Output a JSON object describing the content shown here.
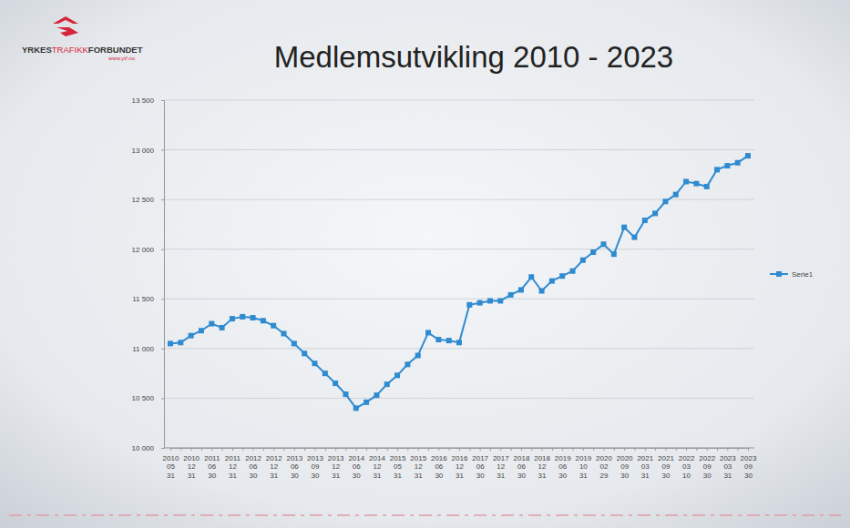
{
  "chart_data": {
    "type": "line",
    "title": "Medlemsutvikling 2010 - 2023",
    "annotations": [
      "YRKES",
      "TRAFIKK",
      "FORBUNDET",
      "www.ytf.no"
    ],
    "categories": [
      "2010\n05\n31",
      null,
      "2010\n12\n31",
      null,
      "2011\n06\n30",
      null,
      "2011\n12\n31",
      null,
      "2012\n06\n30",
      null,
      "2012\n12\n31",
      null,
      "2013\n06\n30",
      null,
      "2013\n09\n30",
      null,
      "2013\n12\n31",
      null,
      "2014\n06\n30",
      null,
      "2014\n12\n31",
      null,
      "2015\n05\n31",
      null,
      "2015\n12\n31",
      null,
      "2016\n06\n30",
      null,
      "2016\n12\n31",
      null,
      "2017\n06\n30",
      null,
      "2017\n12\n31",
      null,
      "2018\n06\n30",
      null,
      "2018\n12\n31",
      null,
      "2019\n06\n30",
      null,
      "2019\n10\n31",
      null,
      "2020\n02\n29",
      null,
      "2020\n09\n30",
      null,
      "2021\n03\n31",
      null,
      "2021\n09\n30",
      null,
      "2022\n03\n10",
      null,
      "2022\n09\n30",
      null,
      "2023\n03\n31",
      null,
      "2023\n09\n30"
    ],
    "series": [
      {
        "name": "Serie1",
        "color": "#2f8bd0",
        "marker": "square",
        "line_style": "solid",
        "values": [
          11050,
          11060,
          11130,
          11180,
          11250,
          11210,
          11300,
          11320,
          11310,
          11280,
          11230,
          11150,
          11050,
          10950,
          10850,
          10750,
          10650,
          10540,
          10400,
          10460,
          10530,
          10640,
          10730,
          10840,
          10930,
          11160,
          11090,
          11080,
          11060,
          11440,
          11460,
          11480,
          11480,
          11540,
          11590,
          11720,
          11580,
          11680,
          11730,
          11780,
          11890,
          11970,
          12050,
          11950,
          12220,
          12120,
          12290,
          12360,
          12480,
          12550,
          12680,
          12660,
          12630,
          12800,
          12840,
          12870,
          12940
        ]
      }
    ],
    "ylim": [
      10000,
      13500
    ],
    "yticks": [
      {
        "value": 10000,
        "label": "10 000"
      },
      {
        "value": 10500,
        "label": "10 500"
      },
      {
        "value": 11000,
        "label": "11 000"
      },
      {
        "value": 11500,
        "label": "11 500"
      },
      {
        "value": 12000,
        "label": "12 000"
      },
      {
        "value": 12500,
        "label": "12 500"
      },
      {
        "value": 13000,
        "label": "13 000"
      },
      {
        "value": 13500,
        "label": "13 500"
      }
    ],
    "grid": true,
    "legend": "right"
  }
}
